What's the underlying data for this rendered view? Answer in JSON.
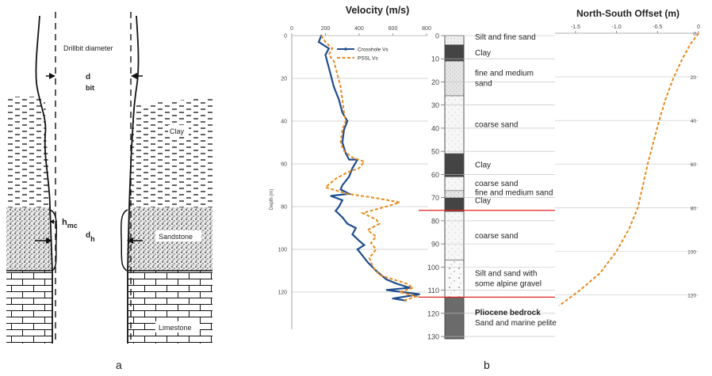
{
  "panel_labels": {
    "a": "a",
    "b": "b"
  },
  "panel_a": {
    "labels": {
      "drillbit": "Drillbit diameter",
      "d_main": "d",
      "d_sub": "bit",
      "clay": "Clay",
      "h_main": "h",
      "h_sub": "mc",
      "dh_main": "d",
      "dh_sub": "h",
      "sandstone": "Sandstone",
      "limestone": "Limestone"
    },
    "colors": {
      "line": "#111111",
      "background": "#ffffff"
    }
  },
  "chart_data": [
    {
      "type": "line",
      "title": "Velocity (m/s)",
      "xlabel": "",
      "ylabel": "Depth (m)",
      "xlim": [
        0,
        800
      ],
      "ylim": [
        0,
        130
      ],
      "x_ticks": [
        "0",
        "200",
        "400",
        "600",
        "800"
      ],
      "y_ticks": [
        "0",
        "20",
        "40",
        "60",
        "80",
        "100",
        "120"
      ],
      "legend_position": "top-right",
      "series": [
        {
          "name": "Crosshole Vs",
          "color": "#1f4e8c",
          "points": [
            [
              175,
              0
            ],
            [
              160,
              3
            ],
            [
              220,
              6
            ],
            [
              200,
              9
            ],
            [
              210,
              12
            ],
            [
              230,
              18
            ],
            [
              250,
              24
            ],
            [
              280,
              30
            ],
            [
              300,
              36
            ],
            [
              330,
              40
            ],
            [
              310,
              44
            ],
            [
              300,
              50
            ],
            [
              320,
              55
            ],
            [
              340,
              58
            ],
            [
              390,
              58
            ],
            [
              360,
              62
            ],
            [
              340,
              66
            ],
            [
              300,
              70
            ],
            [
              290,
              72
            ],
            [
              340,
              74
            ],
            [
              230,
              75
            ],
            [
              300,
              77
            ],
            [
              280,
              80
            ],
            [
              260,
              82
            ],
            [
              300,
              85
            ],
            [
              330,
              88
            ],
            [
              380,
              90
            ],
            [
              360,
              93
            ],
            [
              400,
              96
            ],
            [
              430,
              98
            ],
            [
              390,
              100
            ],
            [
              420,
              103
            ],
            [
              450,
              106
            ],
            [
              500,
              110
            ],
            [
              560,
              114
            ],
            [
              620,
              116
            ],
            [
              700,
              118
            ],
            [
              560,
              119
            ],
            [
              760,
              121
            ],
            [
              600,
              123
            ],
            [
              680,
              124
            ]
          ]
        },
        {
          "name": "PSSL Vs",
          "color": "#e8891a",
          "points": [
            [
              175,
              0
            ],
            [
              200,
              3
            ],
            [
              240,
              6
            ],
            [
              220,
              9
            ],
            [
              250,
              12
            ],
            [
              270,
              18
            ],
            [
              290,
              24
            ],
            [
              300,
              30
            ],
            [
              310,
              36
            ],
            [
              320,
              40
            ],
            [
              300,
              44
            ],
            [
              290,
              50
            ],
            [
              310,
              54
            ],
            [
              360,
              57
            ],
            [
              430,
              59
            ],
            [
              400,
              62
            ],
            [
              330,
              64
            ],
            [
              260,
              67
            ],
            [
              200,
              71
            ],
            [
              330,
              74
            ],
            [
              500,
              76
            ],
            [
              640,
              78
            ],
            [
              560,
              80
            ],
            [
              420,
              83
            ],
            [
              500,
              86
            ],
            [
              520,
              88
            ],
            [
              450,
              91
            ],
            [
              500,
              94
            ],
            [
              470,
              97
            ],
            [
              500,
              100
            ],
            [
              460,
              104
            ],
            [
              480,
              108
            ],
            [
              520,
              112
            ],
            [
              600,
              114
            ],
            [
              680,
              116
            ],
            [
              720,
              118
            ],
            [
              640,
              120
            ],
            [
              740,
              122
            ],
            [
              660,
              124
            ]
          ]
        }
      ]
    },
    {
      "type": "table",
      "title": "",
      "y_ticks": [
        "0",
        "10",
        "20",
        "30",
        "40",
        "50",
        "60",
        "70",
        "80",
        "90",
        "100",
        "110",
        "120",
        "130"
      ],
      "layers": [
        {
          "top": 0,
          "bottom": 4,
          "label": "Silt and fine sand",
          "fill": "#f0f0f0",
          "pattern": "dots-fine"
        },
        {
          "top": 4,
          "bottom": 11,
          "label": "Clay",
          "fill": "#444444",
          "pattern": "solid"
        },
        {
          "top": 11,
          "bottom": 26,
          "label": "fine and medium sand",
          "fill": "#e6e6e6",
          "pattern": "dots"
        },
        {
          "top": 26,
          "bottom": 51,
          "label": "coarse sand",
          "fill": "#f7f7f7",
          "pattern": "dots-sparse"
        },
        {
          "top": 51,
          "bottom": 61,
          "label": "Clay",
          "fill": "#444444",
          "pattern": "solid"
        },
        {
          "top": 61,
          "bottom": 67,
          "label": "coarse sand",
          "fill": "#f7f7f7",
          "pattern": "dots-sparse"
        },
        {
          "top": 67,
          "bottom": 70,
          "label": "fine and medium sand",
          "fill": "#e6e6e6",
          "pattern": "dots"
        },
        {
          "top": 70,
          "bottom": 76,
          "label": "Clay",
          "fill": "#444444",
          "pattern": "solid"
        },
        {
          "top": 76,
          "bottom": 97,
          "label": "coarse sand",
          "fill": "#f7f7f7",
          "pattern": "dots-sparse"
        },
        {
          "top": 97,
          "bottom": 113,
          "label": "Silt and sand with some alpine gravel",
          "fill": "#fafafa",
          "pattern": "gravel"
        },
        {
          "top": 113,
          "bottom": 131,
          "label": "Pliocene bedrock",
          "label2": "Sand and marine pelite",
          "fill": "#6b6b6b",
          "pattern": "solid"
        }
      ],
      "markers": [
        {
          "depth": 75.5,
          "color": "#e02020"
        },
        {
          "depth": 113,
          "color": "#e02020"
        }
      ]
    },
    {
      "type": "line",
      "title": "North-South Offset (m)",
      "xlim": [
        -1.75,
        0
      ],
      "ylim": [
        0,
        130
      ],
      "x_ticks": [
        "-1.5",
        "-1.0",
        "-0.5",
        "0"
      ],
      "y_ticks": [
        "0",
        "20",
        "40",
        "60",
        "80",
        "100",
        "120"
      ],
      "series": [
        {
          "color": "#e8891a",
          "points": [
            [
              0,
              0
            ],
            [
              -0.1,
              5
            ],
            [
              -0.2,
              12
            ],
            [
              -0.3,
              20
            ],
            [
              -0.4,
              30
            ],
            [
              -0.48,
              40
            ],
            [
              -0.55,
              50
            ],
            [
              -0.62,
              60
            ],
            [
              -0.68,
              70
            ],
            [
              -0.74,
              80
            ],
            [
              -0.85,
              90
            ],
            [
              -1.0,
              100
            ],
            [
              -1.2,
              110
            ],
            [
              -1.45,
              118
            ],
            [
              -1.7,
              125
            ]
          ]
        }
      ]
    }
  ]
}
